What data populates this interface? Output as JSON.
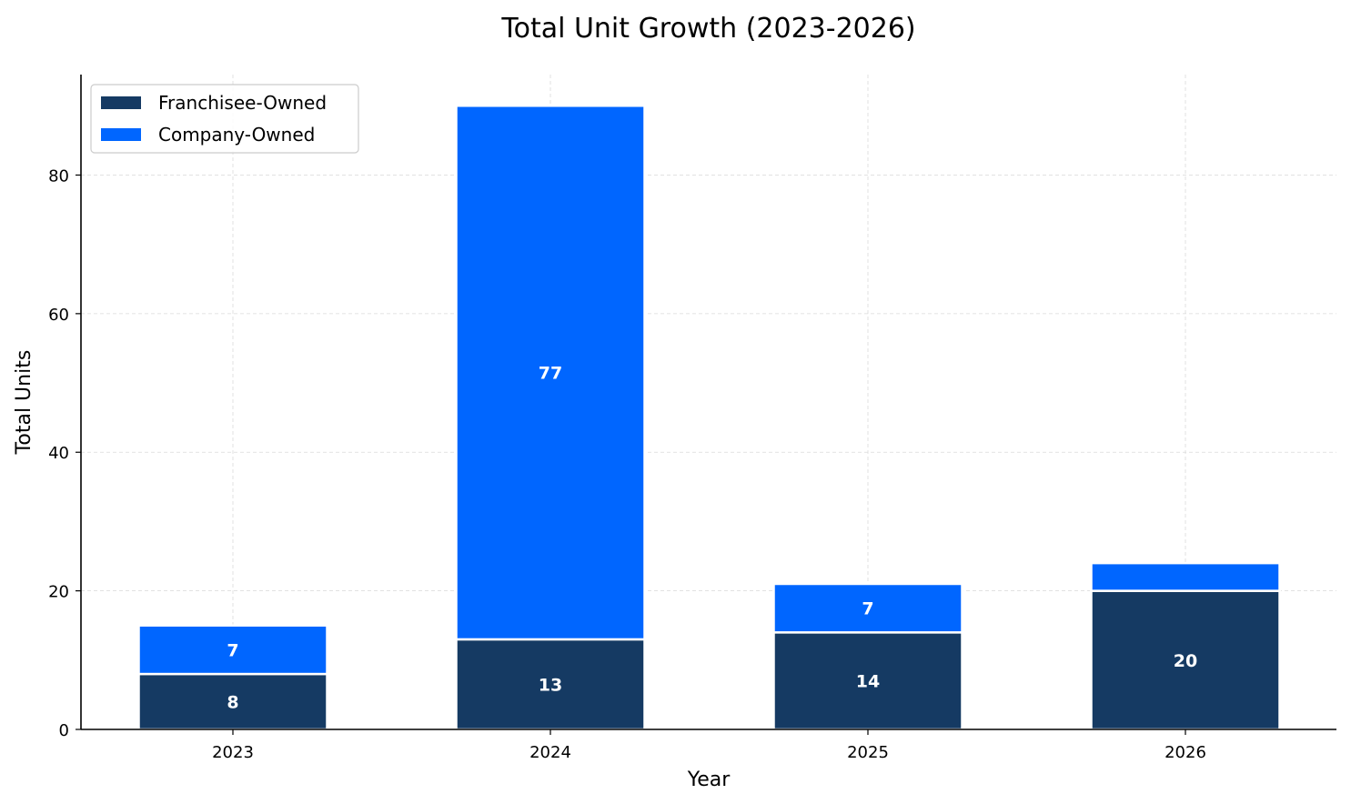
{
  "chart_data": {
    "type": "bar",
    "stacked": true,
    "title": "Total Unit Growth (2023-2026)",
    "xlabel": "Year",
    "ylabel": "Total Units",
    "categories": [
      "2023",
      "2024",
      "2025",
      "2026"
    ],
    "series": [
      {
        "name": "Franchisee-Owned",
        "values": [
          8,
          13,
          14,
          20
        ],
        "color": "#153a63",
        "labels": [
          "8",
          "13",
          "14",
          "20"
        ]
      },
      {
        "name": "Company-Owned",
        "values": [
          7,
          77,
          7,
          4
        ],
        "color": "#0066ff",
        "labels": [
          "7",
          "77",
          "7",
          ""
        ]
      }
    ],
    "ylim": [
      0,
      94.5
    ],
    "yticks": [
      0,
      20,
      40,
      60,
      80
    ],
    "ytick_labels": [
      "0",
      "20",
      "40",
      "60",
      "80"
    ],
    "grid": true,
    "legend_position": "top-left"
  }
}
